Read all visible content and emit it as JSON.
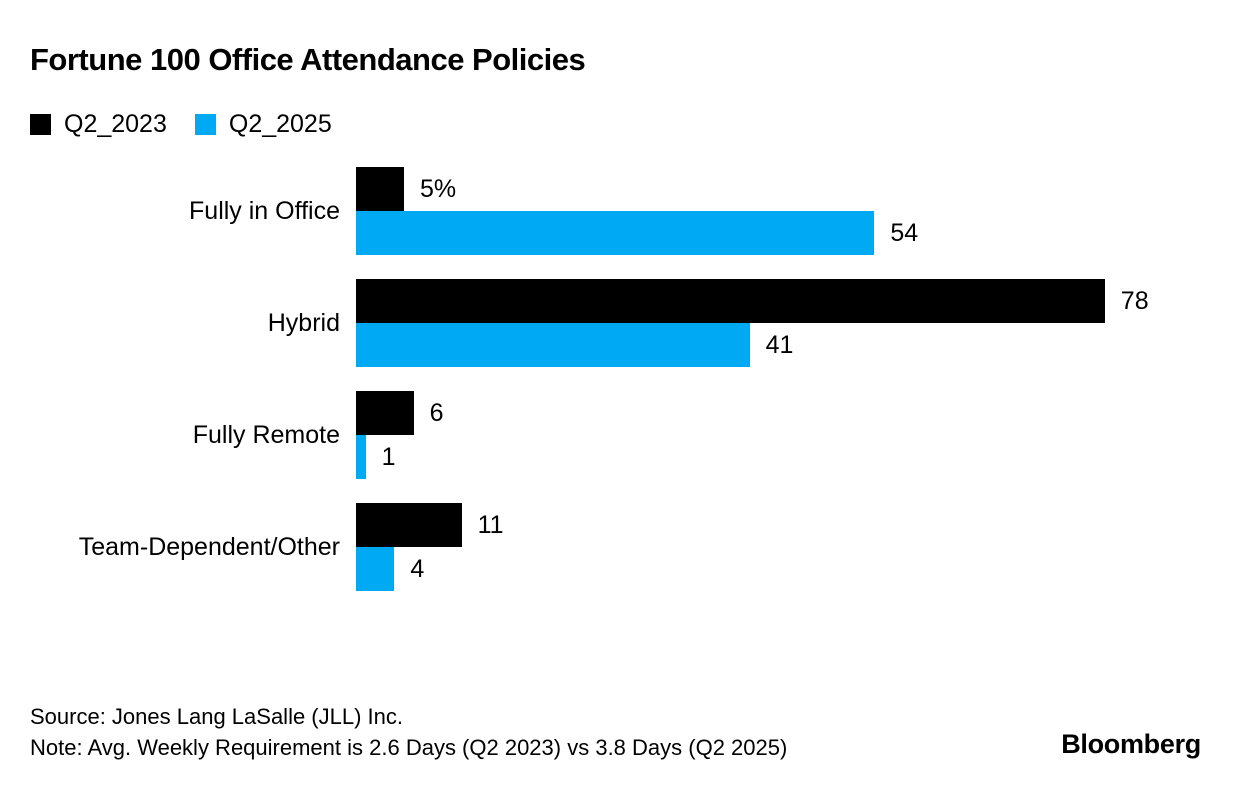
{
  "title": "Fortune 100 Office Attendance Policies",
  "legend": [
    {
      "label": "Q2_2023",
      "color": "#000000"
    },
    {
      "label": "Q2_2025",
      "color": "#00a9f4"
    }
  ],
  "chart_data": {
    "type": "bar",
    "orientation": "horizontal",
    "title": "Fortune 100 Office Attendance Policies",
    "categories": [
      "Fully in Office",
      "Hybrid",
      "Fully Remote",
      "Team-Dependent/Other"
    ],
    "series": [
      {
        "name": "Q2_2023",
        "color": "#000000",
        "values": [
          5,
          78,
          6,
          11
        ],
        "labels": [
          "5%",
          "78",
          "6",
          "11"
        ]
      },
      {
        "name": "Q2_2025",
        "color": "#00a9f4",
        "values": [
          54,
          41,
          1,
          4
        ],
        "labels": [
          "54",
          "41",
          "1",
          "4"
        ]
      }
    ],
    "xlim": [
      0,
      78
    ],
    "grid": false,
    "legend_position": "top-left"
  },
  "footer": {
    "source": "Source: Jones Lang LaSalle (JLL) Inc.",
    "note": "Note: Avg. Weekly Requirement is 2.6 Days (Q2 2023) vs 3.8 Days (Q2 2025)",
    "brand": "Bloomberg"
  }
}
